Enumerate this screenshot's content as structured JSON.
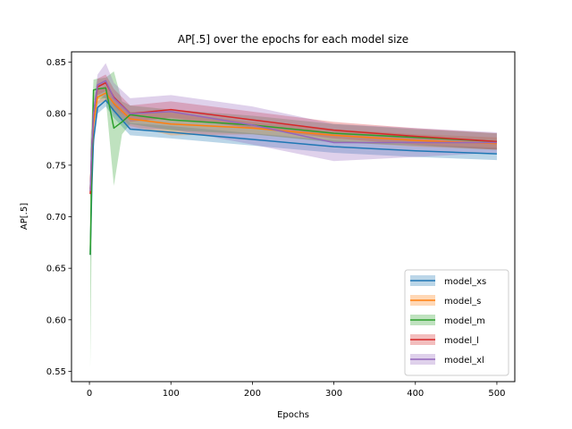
{
  "chart_data": {
    "type": "line",
    "title": "AP[.5] over the epochs for each model size",
    "xlabel": "Epochs",
    "ylabel": "AP[.5]",
    "xlim": [
      -22,
      522
    ],
    "ylim": [
      0.54,
      0.86
    ],
    "xticks": [
      0,
      100,
      200,
      300,
      400,
      500
    ],
    "yticks": [
      0.55,
      0.6,
      0.65,
      0.7,
      0.75,
      0.8,
      0.85
    ],
    "ytick_labels": [
      "0.55",
      "0.60",
      "0.65",
      "0.70",
      "0.75",
      "0.80",
      "0.85"
    ],
    "grid": false,
    "legend_position": "lower-right",
    "series": [
      {
        "name": "model_xs",
        "color": "#1f77b4",
        "x": [
          1,
          3,
          5,
          10,
          20,
          30,
          50,
          100,
          200,
          300,
          400,
          500
        ],
        "y": [
          0.663,
          0.73,
          0.775,
          0.806,
          0.813,
          0.803,
          0.785,
          0.782,
          0.775,
          0.768,
          0.764,
          0.761
        ],
        "lower": [
          0.655,
          0.72,
          0.765,
          0.8,
          0.807,
          0.796,
          0.779,
          0.776,
          0.769,
          0.762,
          0.758,
          0.755
        ],
        "upper": [
          0.671,
          0.74,
          0.785,
          0.812,
          0.819,
          0.81,
          0.791,
          0.788,
          0.781,
          0.774,
          0.77,
          0.767
        ]
      },
      {
        "name": "model_s",
        "color": "#ff7f0e",
        "x": [
          1,
          3,
          5,
          10,
          20,
          30,
          50,
          100,
          200,
          300,
          400,
          500
        ],
        "y": [
          0.727,
          0.76,
          0.79,
          0.816,
          0.82,
          0.81,
          0.795,
          0.79,
          0.786,
          0.779,
          0.774,
          0.771
        ],
        "lower": [
          0.72,
          0.75,
          0.782,
          0.809,
          0.813,
          0.803,
          0.788,
          0.779,
          0.78,
          0.773,
          0.768,
          0.765
        ],
        "upper": [
          0.734,
          0.77,
          0.798,
          0.823,
          0.827,
          0.817,
          0.802,
          0.801,
          0.792,
          0.785,
          0.78,
          0.777
        ]
      },
      {
        "name": "model_m",
        "color": "#2ca02c",
        "x": [
          1,
          3,
          5,
          10,
          20,
          30,
          40,
          50,
          100,
          200,
          300,
          400,
          500
        ],
        "y": [
          0.663,
          0.75,
          0.823,
          0.824,
          0.825,
          0.786,
          0.792,
          0.799,
          0.794,
          0.789,
          0.781,
          0.777,
          0.773
        ],
        "lower": [
          0.553,
          0.7,
          0.813,
          0.814,
          0.815,
          0.73,
          0.78,
          0.79,
          0.784,
          0.78,
          0.772,
          0.769,
          0.765
        ],
        "upper": [
          0.77,
          0.8,
          0.833,
          0.834,
          0.835,
          0.841,
          0.812,
          0.808,
          0.804,
          0.798,
          0.79,
          0.785,
          0.781
        ]
      },
      {
        "name": "model_l",
        "color": "#d62728",
        "x": [
          1,
          3,
          5,
          10,
          20,
          30,
          50,
          100,
          200,
          300,
          400,
          500
        ],
        "y": [
          0.722,
          0.77,
          0.8,
          0.826,
          0.83,
          0.816,
          0.8,
          0.804,
          0.794,
          0.784,
          0.778,
          0.773
        ],
        "lower": [
          0.715,
          0.762,
          0.792,
          0.818,
          0.822,
          0.808,
          0.792,
          0.796,
          0.786,
          0.776,
          0.77,
          0.765
        ],
        "upper": [
          0.729,
          0.778,
          0.808,
          0.834,
          0.838,
          0.824,
          0.808,
          0.812,
          0.802,
          0.792,
          0.786,
          0.781
        ]
      },
      {
        "name": "model_xl",
        "color": "#9467bd",
        "x": [
          1,
          3,
          5,
          10,
          20,
          30,
          50,
          100,
          200,
          300,
          400,
          500
        ],
        "y": [
          0.725,
          0.77,
          0.8,
          0.828,
          0.832,
          0.815,
          0.8,
          0.802,
          0.789,
          0.772,
          0.772,
          0.772
        ],
        "lower": [
          0.715,
          0.76,
          0.79,
          0.818,
          0.815,
          0.8,
          0.785,
          0.785,
          0.77,
          0.754,
          0.758,
          0.762
        ],
        "upper": [
          0.735,
          0.78,
          0.81,
          0.838,
          0.849,
          0.83,
          0.815,
          0.818,
          0.807,
          0.79,
          0.786,
          0.782
        ]
      }
    ]
  }
}
